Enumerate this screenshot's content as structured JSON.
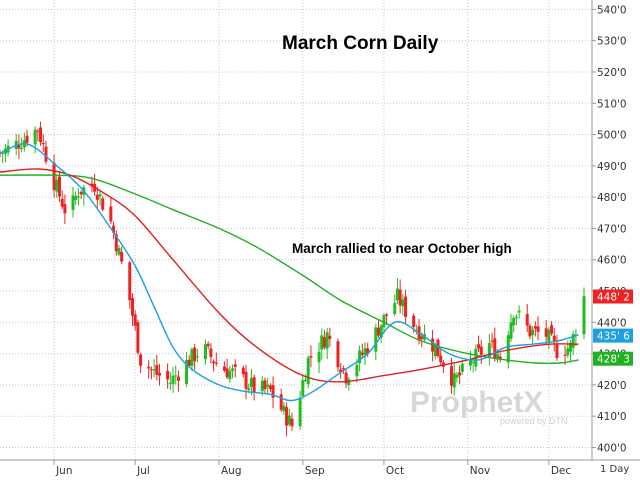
{
  "chart_data": {
    "type": "candlestick",
    "title": "March Corn Daily",
    "annotation": "March rallied to near October high",
    "ylim": [
      396,
      543
    ],
    "yticks": [
      "400'0",
      "410'0",
      "420'0",
      "430'0",
      "440'0",
      "450'0",
      "460'0",
      "470'0",
      "480'0",
      "490'0",
      "500'0",
      "510'0",
      "520'0",
      "530'0",
      "540'0"
    ],
    "ytick_values": [
      400,
      410,
      420,
      430,
      440,
      450,
      460,
      470,
      480,
      490,
      500,
      510,
      520,
      530,
      540
    ],
    "xaxis": {
      "start": "2020-05-12",
      "end": "2020-12-14",
      "labels": [
        "Jun",
        "Jul",
        "Aug",
        "Sep",
        "Oct",
        "Nov",
        "Dec"
      ],
      "month_starts": [
        "2020-06-01",
        "2020-07-01",
        "2020-08-01",
        "2020-09-01",
        "2020-10-01",
        "2020-11-01",
        "2020-12-01"
      ]
    },
    "grid": true,
    "period_label": "1 Day",
    "colors": {
      "up": "#22bb22",
      "down": "#ee2222",
      "ma_short": "#1ca0e0",
      "ma_mid": "#e02020",
      "ma_long": "#20b020",
      "price": "#ee2222"
    },
    "series": [
      {
        "name": "price",
        "values": [
          [
            448.25,
            "448' 2"
          ]
        ]
      },
      {
        "name": "ma_short",
        "values": [
          [
            435.75,
            "435' 6"
          ]
        ]
      },
      {
        "name": "ma_long",
        "values": [
          [
            428.375,
            "428' 3"
          ]
        ]
      }
    ],
    "moving_averages": {
      "ma_short": {
        "x": [
          "2020-05-12",
          "2020-05-22",
          "2020-06-02",
          "2020-06-12",
          "2020-06-22",
          "2020-07-01",
          "2020-07-08",
          "2020-07-15",
          "2020-07-22",
          "2020-08-01",
          "2020-08-10",
          "2020-08-20",
          "2020-08-28",
          "2020-09-05",
          "2020-09-15",
          "2020-09-25",
          "2020-10-05",
          "2020-10-15",
          "2020-10-25",
          "2020-11-05",
          "2020-11-15",
          "2020-11-25",
          "2020-12-04",
          "2020-12-12"
        ],
        "y": [
          494,
          497,
          490,
          482,
          470,
          458,
          445,
          432,
          425,
          420,
          418,
          417,
          415,
          418,
          424,
          430,
          440,
          436,
          430,
          428,
          432,
          433,
          434,
          436
        ]
      },
      "ma_mid": {
        "x": [
          "2020-05-12",
          "2020-05-26",
          "2020-06-07",
          "2020-06-20",
          "2020-07-01",
          "2020-07-15",
          "2020-08-01",
          "2020-08-15",
          "2020-09-01",
          "2020-09-15",
          "2020-10-01",
          "2020-10-15",
          "2020-11-01",
          "2020-11-15",
          "2020-12-01",
          "2020-12-12"
        ],
        "y": [
          488,
          489,
          487,
          481,
          474,
          460,
          443,
          432,
          423,
          421,
          423,
          425,
          428,
          431,
          433,
          433
        ]
      },
      "ma_long": {
        "x": [
          "2020-05-12",
          "2020-06-01",
          "2020-06-15",
          "2020-07-01",
          "2020-07-15",
          "2020-08-01",
          "2020-08-15",
          "2020-09-01",
          "2020-09-15",
          "2020-10-01",
          "2020-10-15",
          "2020-11-01",
          "2020-11-15",
          "2020-11-26",
          "2020-12-05",
          "2020-12-12"
        ],
        "y": [
          487,
          487,
          486,
          481,
          476,
          470,
          464,
          455,
          447,
          440,
          434,
          430,
          428,
          427,
          427,
          428
        ]
      }
    },
    "candles_anchors": {
      "x": [
        "2020-05-12",
        "2020-05-20",
        "2020-05-26",
        "2020-06-01",
        "2020-06-06",
        "2020-06-10",
        "2020-06-16",
        "2020-06-22",
        "2020-06-28",
        "2020-07-03",
        "2020-07-08",
        "2020-07-14",
        "2020-07-20",
        "2020-07-26",
        "2020-08-01",
        "2020-08-08",
        "2020-08-14",
        "2020-08-20",
        "2020-08-25",
        "2020-08-28",
        "2020-09-03",
        "2020-09-10",
        "2020-09-17",
        "2020-09-24",
        "2020-10-01",
        "2020-10-06",
        "2020-10-13",
        "2020-10-20",
        "2020-10-27",
        "2020-11-03",
        "2020-11-09",
        "2020-11-13",
        "2020-11-18",
        "2020-11-24",
        "2020-11-30",
        "2020-12-04",
        "2020-12-09",
        "2020-12-14"
      ],
      "y": [
        494,
        498,
        502,
        485,
        474,
        482,
        484,
        472,
        452,
        428,
        424,
        421,
        427,
        432,
        426,
        423,
        419,
        418,
        411,
        407,
        428,
        436,
        423,
        431,
        441,
        448,
        438,
        432,
        421,
        428,
        433,
        429,
        444,
        437,
        436,
        431,
        432,
        448
      ]
    }
  }
}
